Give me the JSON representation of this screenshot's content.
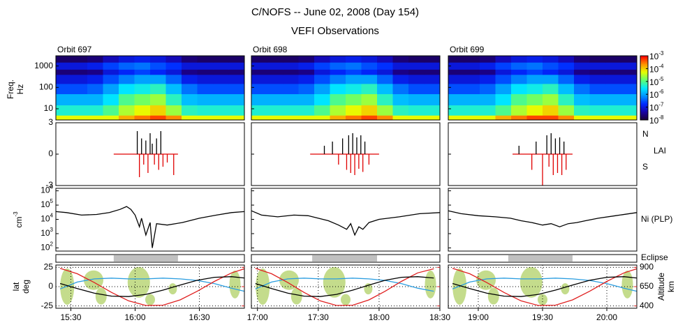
{
  "chart_data": {
    "type": "orbit-panels",
    "title": "C/NOFS  --  June 02, 2008 (Day 154)",
    "subtitle": "VEFI Observations",
    "spectrogram": {
      "ylabel": [
        "Freq.",
        "Hz"
      ],
      "ylog": true,
      "ylim": [
        3,
        3000
      ],
      "yticks": [
        10,
        100,
        1000
      ],
      "freq_bins": [
        3,
        5,
        15,
        50,
        150,
        400,
        700,
        1500,
        3000
      ],
      "colormap": [
        "#1a0030",
        "#1a00a0",
        "#0028ff",
        "#0090ff",
        "#00e8ff",
        "#60ff70",
        "#e8ff00",
        "#ff9000",
        "#ff0000"
      ],
      "colorbar": {
        "log": true,
        "lim": [
          1e-08,
          0.001
        ],
        "ticks": [
          {
            "value": 0.001,
            "label": "10",
            "exponent": "-3"
          },
          {
            "value": 0.0001,
            "label": "10",
            "exponent": "-4"
          },
          {
            "value": 1e-05,
            "label": "10",
            "exponent": "-5"
          },
          {
            "value": 1e-06,
            "label": "10",
            "exponent": "-6"
          },
          {
            "value": 1e-07,
            "label": "10",
            "exponent": "-7"
          },
          {
            "value": 1e-08,
            "label": "10",
            "exponent": "-8"
          }
        ]
      }
    },
    "lai": {
      "ylim": [
        -3,
        3
      ],
      "yticks": [
        3,
        0,
        -3
      ],
      "north_label": "N",
      "label": "LAI",
      "south_label": "S",
      "north_color": "#000000",
      "south_color": "#e00000"
    },
    "ni": {
      "ylabel": {
        "label": "cm",
        "exponent": "-3"
      },
      "ylog": true,
      "ylim": [
        60,
        1500000
      ],
      "label": "Ni (PLP)",
      "color": "#000000",
      "yticks": [
        {
          "value": 1000000,
          "label": "10",
          "exponent": "6"
        },
        {
          "value": 100000,
          "label": "10",
          "exponent": "5"
        },
        {
          "value": 10000,
          "label": "10",
          "exponent": "4"
        },
        {
          "value": 1000,
          "label": "10",
          "exponent": "3"
        },
        {
          "value": 100,
          "label": "10",
          "exponent": "2"
        }
      ]
    },
    "eclipse": {
      "label": "Eclipse",
      "color": "#c0c0c0"
    },
    "geo": {
      "ylabel": [
        "lat",
        "deg"
      ],
      "ylim": [
        -28,
        28
      ],
      "yticks": [
        25,
        0,
        -25
      ],
      "y2label": [
        "Altitude",
        "km"
      ],
      "y2lim": [
        370,
        930
      ],
      "y2ticks": [
        900,
        650,
        400
      ],
      "lat_color": "#000000",
      "alt_color": "#e02020",
      "mlat_color": "#2a9de0",
      "grid": true
    },
    "orbits": [
      {
        "label": "Orbit 697",
        "xlim": [
          923,
          1011
        ],
        "xticks": [
          {
            "value": 930,
            "label": "15:30"
          },
          {
            "value": 960,
            "label": "16:00"
          },
          {
            "value": 990,
            "label": "16:30"
          }
        ],
        "spec": [
          [
            6e-05,
            6e-05,
            6e-05,
            6e-05,
            0.00016,
            0.0003,
            0.0005,
            0.00025,
            6e-05,
            6e-05,
            6e-05,
            6e-05
          ],
          [
            5e-06,
            5e-06,
            5e-06,
            1e-05,
            3e-05,
            6e-05,
            0.0001,
            2.5e-05,
            6e-06,
            5e-06,
            5e-06,
            5e-06
          ],
          [
            1.3e-06,
            1.3e-06,
            1.3e-06,
            3e-06,
            1e-05,
            1.6e-05,
            2.5e-05,
            6e-06,
            1.6e-06,
            1.3e-06,
            1.3e-06,
            1.3e-06
          ],
          [
            3e-07,
            3e-07,
            4e-07,
            1e-06,
            3e-06,
            4e-06,
            6e-06,
            1.6e-06,
            5e-07,
            3e-07,
            3e-07,
            3e-07
          ],
          [
            1e-07,
            1e-07,
            1.3e-07,
            3e-07,
            6e-07,
            1e-06,
            1e-06,
            4e-07,
            1.3e-07,
            1e-07,
            1e-07,
            1e-07
          ],
          [
            2.5e-08,
            2.5e-08,
            3e-08,
            1e-07,
            1.6e-07,
            2.5e-07,
            1.6e-07,
            1e-07,
            3e-08,
            2.5e-08,
            2.5e-08,
            2.5e-08
          ],
          [
            1e-07,
            1e-07,
            1.3e-07,
            2.5e-07,
            4e-07,
            5e-07,
            3e-07,
            2e-07,
            1e-07,
            1e-07,
            1e-07,
            1e-07
          ],
          [
            2e-08,
            2e-08,
            2.5e-08,
            6e-08,
            1e-07,
            1.3e-07,
            1e-07,
            6e-08,
            2.5e-08,
            2e-08,
            2e-08,
            2e-08
          ]
        ],
        "lai": {
          "x": [
            950,
            961,
            962,
            963,
            964,
            965,
            966,
            967,
            968,
            969,
            970,
            971,
            972,
            973,
            975,
            978,
            980
          ],
          "values": [
            0,
            2.2,
            -2.2,
            1.5,
            -1,
            1.3,
            -1.8,
            2,
            1,
            -1,
            1.5,
            -1.5,
            2.2,
            -1.2,
            -0.8,
            -2,
            0
          ]
        },
        "ni": {
          "x": [
            923,
            928,
            935,
            942,
            948,
            953,
            956,
            958,
            960,
            962,
            963,
            965,
            967,
            968,
            970,
            975,
            982,
            990,
            998,
            1005,
            1011
          ],
          "values": [
            35000,
            30000,
            20000,
            22000,
            30000,
            50000,
            80000,
            50000,
            20000,
            3000,
            12000,
            800,
            6000,
            100,
            5000,
            4000,
            6000,
            12000,
            20000,
            30000,
            35000
          ]
        },
        "eclipse": [
          950,
          980
        ],
        "x": [
          925,
          933,
          941,
          949,
          957,
          965,
          973,
          981,
          989,
          997,
          1005,
          1011
        ],
        "lat": [
          4.1,
          -2.5,
          -8.5,
          -12.3,
          -12.8,
          -10,
          -4.5,
          2.1,
          8.2,
          12.1,
          12.9,
          11.2
        ],
        "alt": [
          887,
          817,
          702,
          575,
          466,
          406,
          410,
          478,
          590,
          718,
          828,
          881
        ],
        "mlat": [
          -3,
          6,
          10,
          11,
          10,
          10,
          11,
          10,
          8,
          4,
          -2,
          -6
        ]
      },
      {
        "label": "Orbit 698",
        "xlim": [
          1017,
          1110
        ],
        "xticks": [
          {
            "value": 1020,
            "label": "17:00"
          },
          {
            "value": 1050,
            "label": "17:30"
          },
          {
            "value": 1080,
            "label": "18:00"
          },
          {
            "value": 1110,
            "label": "18:30"
          }
        ],
        "spec": [
          [
            6e-05,
            6e-05,
            6e-05,
            6e-05,
            6e-05,
            0.00016,
            0.0003,
            0.0005,
            0.00025,
            6e-05,
            6e-05,
            6e-05
          ],
          [
            5e-06,
            5e-06,
            5e-06,
            5e-06,
            1e-05,
            3e-05,
            6e-05,
            0.0001,
            2.5e-05,
            6e-06,
            5e-06,
            5e-06
          ],
          [
            1.3e-06,
            1.3e-06,
            1.3e-06,
            1.3e-06,
            3e-06,
            1e-05,
            1.6e-05,
            2.5e-05,
            6e-06,
            1.6e-06,
            1.3e-06,
            1.3e-06
          ],
          [
            3e-07,
            3e-07,
            3e-07,
            4e-07,
            1e-06,
            3e-06,
            4e-06,
            6e-06,
            1.6e-06,
            5e-07,
            3e-07,
            3e-07
          ],
          [
            1e-07,
            1e-07,
            1e-07,
            1.3e-07,
            3e-07,
            6e-07,
            1e-06,
            1e-06,
            4e-07,
            1.3e-07,
            1e-07,
            1e-07
          ],
          [
            2.5e-08,
            2.5e-08,
            2.5e-08,
            3e-08,
            1e-07,
            1.6e-07,
            2.5e-07,
            1.6e-07,
            1e-07,
            3e-08,
            2.5e-08,
            2.5e-08
          ],
          [
            1e-07,
            1e-07,
            1e-07,
            1.3e-07,
            2.5e-07,
            4e-07,
            5e-07,
            3e-07,
            2e-07,
            1e-07,
            1e-07,
            1e-07
          ],
          [
            2e-08,
            2e-08,
            2e-08,
            2.5e-08,
            6e-08,
            1e-07,
            1.3e-07,
            1e-07,
            6e-08,
            2.5e-08,
            2e-08,
            2e-08
          ]
        ],
        "lai": {
          "x": [
            1046,
            1053,
            1057,
            1060,
            1062,
            1064,
            1065,
            1066,
            1067,
            1068,
            1069,
            1070,
            1071,
            1072,
            1073,
            1075,
            1080
          ],
          "values": [
            0,
            0.8,
            1.2,
            -1,
            1.5,
            -1.5,
            1.8,
            -1.8,
            2,
            -2,
            1.6,
            -1.4,
            1.8,
            -1.7,
            1.2,
            -1,
            0
          ]
        },
        "ni": {
          "x": [
            1017,
            1022,
            1030,
            1038,
            1045,
            1050,
            1055,
            1060,
            1064,
            1066,
            1068,
            1070,
            1072,
            1075,
            1080,
            1090,
            1100,
            1110
          ],
          "values": [
            40000,
            20000,
            15000,
            20000,
            18000,
            12000,
            8000,
            4000,
            2000,
            5000,
            800,
            3000,
            2000,
            6000,
            10000,
            15000,
            25000,
            30000
          ]
        },
        "eclipse": [
          1047,
          1079
        ],
        "x": [
          1019,
          1027,
          1035,
          1043,
          1051,
          1059,
          1067,
          1075,
          1083,
          1091,
          1099,
          1107
        ],
        "lat": [
          4.1,
          -2.5,
          -8.5,
          -12.3,
          -12.8,
          -10,
          -4.5,
          2.1,
          8.2,
          12.1,
          12.9,
          11.2
        ],
        "alt": [
          887,
          817,
          702,
          575,
          466,
          406,
          410,
          478,
          590,
          718,
          828,
          881
        ],
        "mlat": [
          -3,
          6,
          10,
          11,
          10,
          10,
          11,
          10,
          8,
          4,
          -2,
          -6
        ]
      },
      {
        "label": "Orbit 699",
        "xlim": [
          1126,
          1214
        ],
        "xticks": [
          {
            "value": 1140,
            "label": "19:00"
          },
          {
            "value": 1170,
            "label": "19:30"
          },
          {
            "value": 1200,
            "label": "20:00"
          }
        ],
        "spec": [
          [
            6e-05,
            6e-05,
            6e-05,
            0.00016,
            0.0003,
            0.0005,
            0.0005,
            0.00025,
            6e-05,
            6e-05,
            6e-05,
            6e-05
          ],
          [
            5e-06,
            5e-06,
            5e-06,
            1e-05,
            3e-05,
            6e-05,
            0.0001,
            2.5e-05,
            6e-06,
            5e-06,
            5e-06,
            5e-06
          ],
          [
            1.3e-06,
            1.3e-06,
            1.3e-06,
            3e-06,
            1e-05,
            1.6e-05,
            2.5e-05,
            6e-06,
            1.6e-06,
            1.3e-06,
            1.3e-06,
            1.3e-06
          ],
          [
            3e-07,
            3e-07,
            4e-07,
            1e-06,
            3e-06,
            4e-06,
            6e-06,
            1.6e-06,
            5e-07,
            3e-07,
            3e-07,
            3e-07
          ],
          [
            1e-07,
            1e-07,
            1.3e-07,
            3e-07,
            6e-07,
            1e-06,
            1e-06,
            4e-07,
            1.3e-07,
            1e-07,
            1e-07,
            1e-07
          ],
          [
            2.5e-08,
            2.5e-08,
            3e-08,
            1e-07,
            1.6e-07,
            2.5e-07,
            1.6e-07,
            1e-07,
            3e-08,
            2.5e-08,
            2.5e-08,
            2.5e-08
          ],
          [
            1e-07,
            1e-07,
            1.3e-07,
            2.5e-07,
            4e-07,
            5e-07,
            3e-07,
            2e-07,
            1e-07,
            1e-07,
            1e-07,
            1e-07
          ],
          [
            2e-08,
            2e-08,
            2.5e-08,
            6e-08,
            1e-07,
            1.3e-07,
            1e-07,
            6e-08,
            2.5e-08,
            2e-08,
            2e-08,
            2e-08
          ]
        ],
        "lai": {
          "x": [
            1156,
            1159,
            1165,
            1167,
            1170,
            1172,
            1173,
            1174,
            1175,
            1176,
            1177,
            1178,
            1179,
            1180,
            1181,
            1184
          ],
          "values": [
            0,
            0.8,
            -1.5,
            1.2,
            -3,
            1.8,
            -1.2,
            2,
            -2,
            1.5,
            -1.8,
            1.6,
            -2,
            1.2,
            -1.5,
            0
          ]
        },
        "ni": {
          "x": [
            1126,
            1132,
            1140,
            1148,
            1155,
            1160,
            1165,
            1170,
            1174,
            1178,
            1182,
            1186,
            1190,
            1196,
            1204,
            1214
          ],
          "values": [
            40000,
            25000,
            18000,
            15000,
            12000,
            8000,
            6000,
            4000,
            5000,
            3000,
            5000,
            6000,
            8000,
            12000,
            18000,
            30000
          ]
        },
        "eclipse": [
          1154,
          1184
        ],
        "x": [
          1128,
          1136,
          1144,
          1152,
          1160,
          1168,
          1176,
          1184,
          1192,
          1200,
          1208,
          1214
        ],
        "lat": [
          4.1,
          -2.5,
          -8.5,
          -12.3,
          -12.8,
          -10,
          -4.5,
          2.1,
          8.2,
          12.1,
          12.9,
          11.2
        ],
        "alt": [
          887,
          817,
          702,
          575,
          466,
          406,
          410,
          478,
          590,
          718,
          828,
          881
        ],
        "mlat": [
          -3,
          6,
          10,
          11,
          10,
          10,
          11,
          10,
          8,
          4,
          -2,
          -6
        ]
      }
    ]
  }
}
